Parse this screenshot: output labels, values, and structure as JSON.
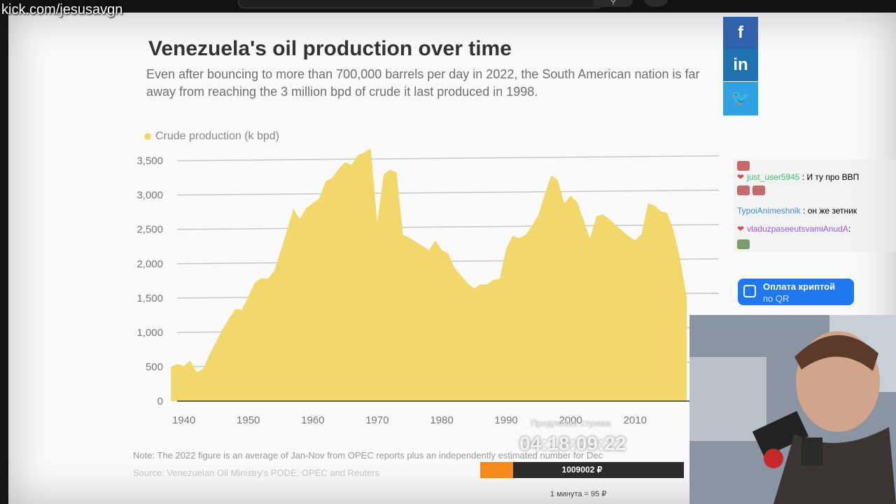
{
  "overlay": {
    "channel_url": "kick.com/jesusavgn"
  },
  "article": {
    "title": "Venezuela's oil production over time",
    "subtitle": "Even after bouncing to more than 700,000 barrels per day in 2022, the South American nation is far away from reaching the 3 million bpd of crude it last produced in 1998.",
    "note": "Note: The 2022 figure is an average of Jan-Nov from OPEC reports plus an independently estimated number for Dec",
    "source": "Source: Venezuelan Oil Ministry's PODE, OPEC and Reuters"
  },
  "share": {
    "facebook": "f",
    "linkedin": "in",
    "twitter": "🐦"
  },
  "chart_data": {
    "type": "area",
    "series": [
      {
        "name": "Crude production (k bpd)",
        "color": "#f2d76b",
        "x": [
          1938,
          1939,
          1940,
          1941,
          1942,
          1943,
          1944,
          1945,
          1946,
          1947,
          1948,
          1949,
          1950,
          1951,
          1952,
          1953,
          1954,
          1955,
          1956,
          1957,
          1958,
          1959,
          1960,
          1961,
          1962,
          1963,
          1964,
          1965,
          1966,
          1967,
          1968,
          1969,
          1970,
          1971,
          1972,
          1973,
          1974,
          1975,
          1976,
          1977,
          1978,
          1979,
          1980,
          1981,
          1982,
          1983,
          1984,
          1985,
          1986,
          1987,
          1988,
          1989,
          1990,
          1991,
          1992,
          1993,
          1994,
          1995,
          1996,
          1997,
          1998,
          1999,
          2000,
          2001,
          2002,
          2003,
          2004,
          2005,
          2006,
          2007,
          2008,
          2009,
          2010,
          2011,
          2012,
          2013,
          2014,
          2015,
          2016,
          2017,
          2018
        ],
        "values": [
          500,
          540,
          510,
          590,
          420,
          470,
          680,
          860,
          1050,
          1200,
          1340,
          1330,
          1520,
          1720,
          1790,
          1780,
          1890,
          2180,
          2480,
          2800,
          2650,
          2810,
          2880,
          2950,
          3200,
          3250,
          3380,
          3480,
          3440,
          3580,
          3620,
          3680,
          2600,
          3300,
          3370,
          3330,
          2420,
          2380,
          2320,
          2260,
          2200,
          2340,
          2200,
          2150,
          1940,
          1830,
          1720,
          1640,
          1700,
          1700,
          1760,
          1780,
          2220,
          2410,
          2370,
          2420,
          2550,
          2710,
          3010,
          3290,
          3220,
          2880,
          2990,
          2900,
          2640,
          2370,
          2690,
          2720,
          2650,
          2560,
          2480,
          2400,
          2340,
          2430,
          2880,
          2850,
          2760,
          2740,
          2470,
          2060,
          1510
        ]
      }
    ],
    "xlim": [
      1937,
      2023
    ],
    "ylim": [
      0,
      3700
    ],
    "x_ticks": [
      "1940",
      "1950",
      "1960",
      "1970",
      "1980",
      "1990",
      "2000",
      "2010"
    ],
    "y_ticks": [
      "0",
      "500",
      "1,000",
      "1,500",
      "2,000",
      "2,500",
      "3,000",
      "3,500"
    ],
    "legend": "top-left",
    "grid": true
  },
  "chat": {
    "messages": [
      {
        "user": "just_user5945",
        "text": ": И ту про ВВП",
        "color": "#3fbf6a"
      },
      {
        "user": "TypoiAnimeshnik",
        "text": ": он же зетник",
        "color": "#3f8fd0"
      },
      {
        "user": "vladuzpaseeutsvamiAnudA",
        "text": ":",
        "color": "#9b59d6"
      }
    ]
  },
  "crypto_widget": {
    "line1": "Оплата криптой",
    "line2": "по QR"
  },
  "stream": {
    "timer_label": "Продление стрима",
    "timer": "04:18:09:22",
    "donation_amount": "1009002 ₽",
    "donation_progress": 0.16,
    "rate": "1 минута = 95 ₽"
  }
}
